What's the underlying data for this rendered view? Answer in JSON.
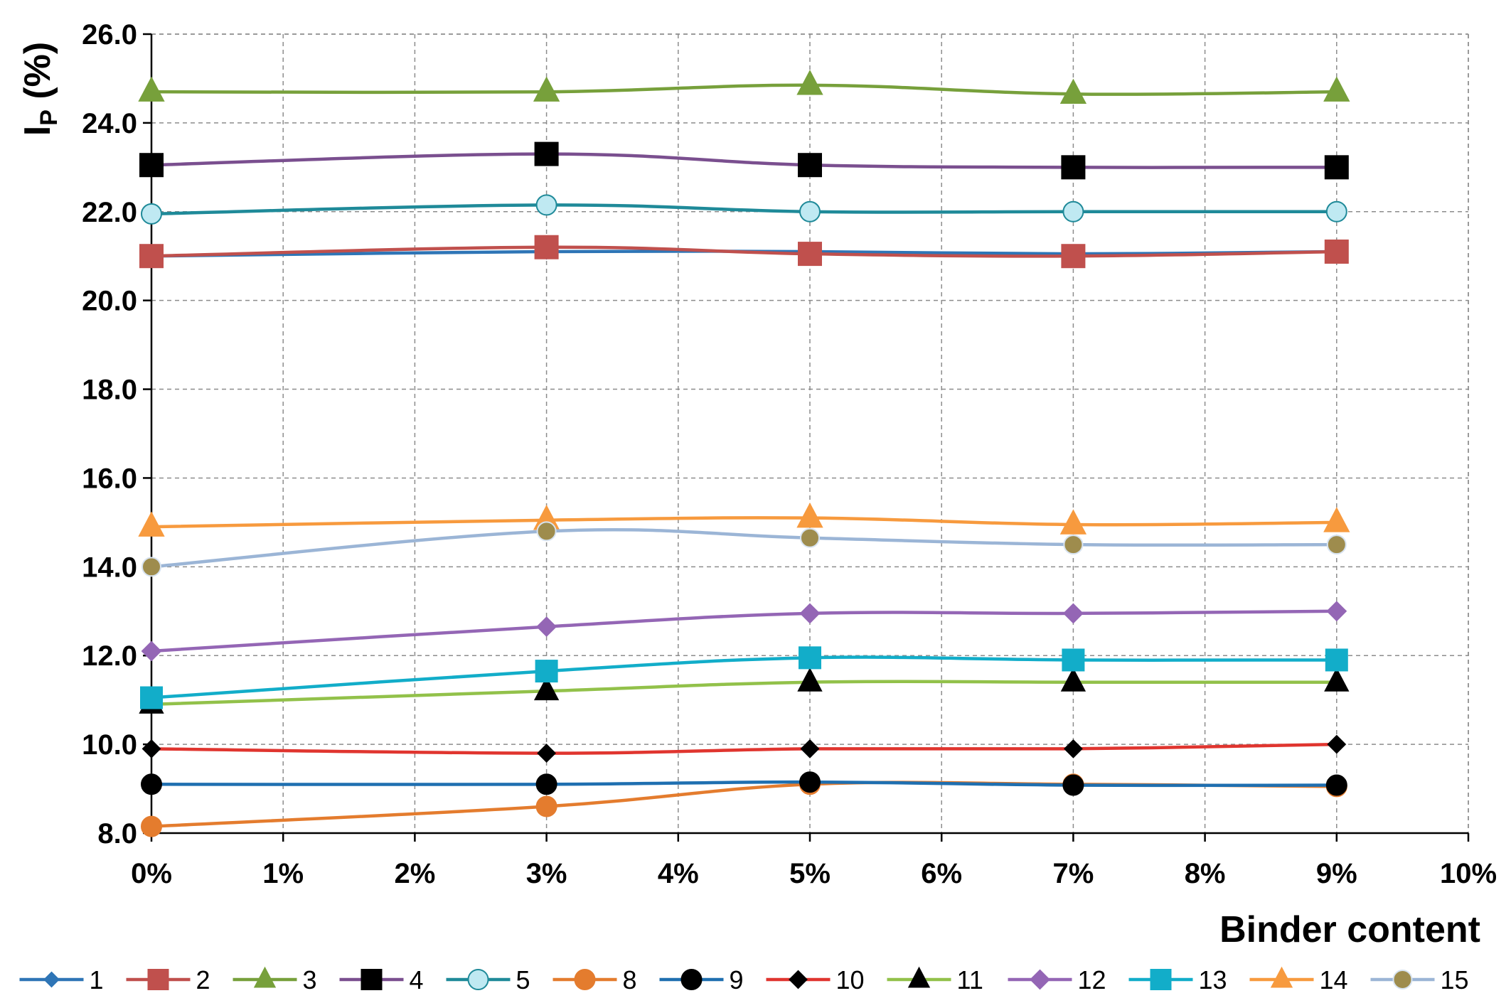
{
  "chart_data": {
    "type": "line",
    "title": "",
    "xlabel": "Binder content",
    "ylabel_main": "I",
    "ylabel_sub": "P",
    "ylabel_rest": " (%)",
    "xlim": [
      0,
      10
    ],
    "ylim": [
      8.0,
      26.0
    ],
    "grid": true,
    "legend_position": "bottom",
    "x_ticks": [
      0,
      1,
      2,
      3,
      4,
      5,
      6,
      7,
      8,
      9,
      10
    ],
    "x_tick_labels": [
      "0%",
      "1%",
      "2%",
      "3%",
      "4%",
      "5%",
      "6%",
      "7%",
      "8%",
      "9%",
      "10%"
    ],
    "y_ticks": [
      8,
      10,
      12,
      14,
      16,
      18,
      20,
      22,
      24,
      26
    ],
    "y_tick_labels": [
      "8.0",
      "10.0",
      "12.0",
      "14.0",
      "16.0",
      "18.0",
      "20.0",
      "22.0",
      "24.0",
      "26.0"
    ],
    "x": [
      0,
      3,
      5,
      7,
      9
    ],
    "series": [
      {
        "name": "1",
        "values": [
          21.0,
          21.1,
          21.1,
          21.05,
          21.1
        ],
        "color": "#2E75B6",
        "marker": "diamond",
        "marker_fill": "#2E75B6",
        "marker_stroke": "#2E75B6",
        "size": 10
      },
      {
        "name": "2",
        "values": [
          21.0,
          21.2,
          21.05,
          21.0,
          21.1
        ],
        "color": "#C0504D",
        "marker": "square",
        "marker_fill": "#C0504D",
        "marker_stroke": "#C0504D",
        "size": 16
      },
      {
        "name": "3",
        "values": [
          24.7,
          24.7,
          24.85,
          24.65,
          24.7
        ],
        "color": "#77A03B",
        "marker": "triangle",
        "marker_fill": "#77A03B",
        "marker_stroke": "#77A03B",
        "size": 17
      },
      {
        "name": "4",
        "values": [
          23.05,
          23.3,
          23.05,
          23.0,
          23.0
        ],
        "color": "#7A4F8F",
        "marker": "square",
        "marker_fill": "#000000",
        "marker_stroke": "#000000",
        "size": 16
      },
      {
        "name": "5",
        "values": [
          21.95,
          22.15,
          22.0,
          22.0,
          22.0
        ],
        "color": "#1F8A99",
        "marker": "circle",
        "marker_fill": "#BFE9F2",
        "marker_stroke": "#1F8A99",
        "size": 14
      },
      {
        "name": "8",
        "values": [
          8.15,
          8.6,
          9.1,
          9.1,
          9.05
        ],
        "color": "#E47C2E",
        "marker": "circle",
        "marker_fill": "#E47C2E",
        "marker_stroke": "#E47C2E",
        "size": 14
      },
      {
        "name": "9",
        "values": [
          9.1,
          9.1,
          9.15,
          9.08,
          9.08
        ],
        "color": "#1F6FB0",
        "marker": "circle",
        "marker_fill": "#000000",
        "marker_stroke": "#000000",
        "size": 14
      },
      {
        "name": "10",
        "values": [
          9.9,
          9.8,
          9.9,
          9.9,
          10.0
        ],
        "color": "#E0352F",
        "marker": "diamond",
        "marker_fill": "#000000",
        "marker_stroke": "#000000",
        "size": 12
      },
      {
        "name": "11",
        "values": [
          10.9,
          11.2,
          11.4,
          11.4,
          11.4
        ],
        "color": "#92C14A",
        "marker": "triangle",
        "marker_fill": "#000000",
        "marker_stroke": "#000000",
        "size": 16
      },
      {
        "name": "12",
        "values": [
          12.1,
          12.65,
          12.95,
          12.95,
          13.0
        ],
        "color": "#9466B5",
        "marker": "diamond",
        "marker_fill": "#9466B5",
        "marker_stroke": "#9466B5",
        "size": 13
      },
      {
        "name": "13",
        "values": [
          11.05,
          11.65,
          11.95,
          11.9,
          11.9
        ],
        "color": "#12ADC9",
        "marker": "square",
        "marker_fill": "#12ADC9",
        "marker_stroke": "#12ADC9",
        "size": 15
      },
      {
        "name": "14",
        "values": [
          14.9,
          15.05,
          15.1,
          14.95,
          15.0
        ],
        "color": "#F79A3E",
        "marker": "triangle",
        "marker_fill": "#F79A3E",
        "marker_stroke": "#F79A3E",
        "size": 17
      },
      {
        "name": "15",
        "values": [
          14.0,
          14.8,
          14.65,
          14.5,
          14.5
        ],
        "color": "#9BB5D6",
        "marker": "circle",
        "marker_fill": "#9E8C4D",
        "marker_stroke": "#D7E3F0",
        "size": 13
      }
    ]
  }
}
